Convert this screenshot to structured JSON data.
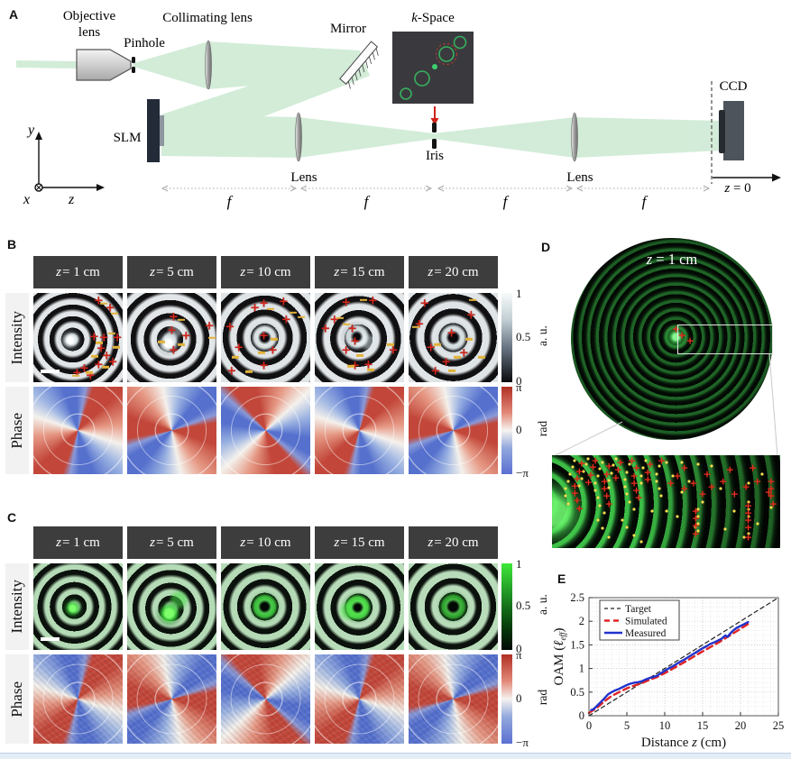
{
  "panels": {
    "A": {
      "label": "A",
      "objective_line1": "Objective",
      "objective_line2": "lens",
      "pinhole": "Pinhole",
      "collimating": "Collimating lens",
      "mirror": "Mirror",
      "kspace_k": "k",
      "kspace_rest": "-Space",
      "slm": "SLM",
      "lens1": "Lens",
      "lens2": "Lens",
      "iris": "Iris",
      "ccd": "CCD",
      "z0_var": "z",
      "z0_rest": " = 0",
      "f": "f",
      "axis_x": "x",
      "axis_y": "y",
      "axis_z": "z"
    },
    "B": {
      "label": "B",
      "headers": [
        "z = 1 cm",
        "z = 5 cm",
        "z = 10 cm",
        "z = 15 cm",
        "z = 20 cm"
      ],
      "row_labels": [
        "Intensity",
        "Phase"
      ],
      "colorbar_intensity": {
        "ticks": [
          "1",
          "0.5",
          "0"
        ],
        "unit": "a. u."
      },
      "colorbar_phase": {
        "ticks": [
          "π",
          "0",
          "−π"
        ],
        "unit": "rad"
      },
      "marks": [
        {
          "p": [
            [
              73,
              9
            ],
            [
              86,
              17
            ],
            [
              68,
              49
            ],
            [
              79,
              51
            ],
            [
              94,
              51
            ],
            [
              76,
              63
            ],
            [
              82,
              71
            ],
            [
              89,
              78
            ],
            [
              73,
              81
            ],
            [
              57,
              85
            ],
            [
              49,
              90
            ],
            [
              64,
              93
            ]
          ],
          "m": [
            [
              79,
              12
            ],
            [
              91,
              23
            ],
            [
              74,
              56
            ],
            [
              93,
              61
            ],
            [
              69,
              71
            ],
            [
              81,
              83
            ],
            [
              63,
              89
            ],
            [
              47,
              93
            ],
            [
              88,
              45
            ]
          ]
        },
        {
          "p": [
            [
              52,
              27
            ],
            [
              50,
              42
            ],
            [
              66,
              48
            ],
            [
              52,
              65
            ],
            [
              92,
              37
            ]
          ],
          "m": [
            [
              61,
              30
            ],
            [
              38,
              55
            ],
            [
              61,
              58
            ],
            [
              95,
              50
            ]
          ]
        },
        {
          "p": [
            [
              48,
              12
            ],
            [
              70,
              10
            ],
            [
              38,
              17
            ],
            [
              73,
              30
            ],
            [
              10,
              38
            ],
            [
              48,
              48
            ],
            [
              20,
              62
            ],
            [
              58,
              65
            ],
            [
              48,
              82
            ],
            [
              12,
              88
            ]
          ],
          "m": [
            [
              56,
              18
            ],
            [
              81,
              22
            ],
            [
              90,
              27
            ],
            [
              60,
              52
            ],
            [
              45,
              67
            ],
            [
              16,
              72
            ],
            [
              31,
              88
            ]
          ]
        },
        {
          "p": [
            [
              35,
              11
            ],
            [
              65,
              9
            ],
            [
              22,
              30
            ],
            [
              12,
              40
            ],
            [
              42,
              40
            ],
            [
              45,
              55
            ],
            [
              35,
              65
            ],
            [
              88,
              65
            ],
            [
              45,
              82
            ],
            [
              60,
              81
            ]
          ],
          "m": [
            [
              55,
              8
            ],
            [
              28,
              28
            ],
            [
              35,
              35
            ],
            [
              85,
              58
            ],
            [
              50,
              70
            ],
            [
              40,
              82
            ],
            [
              63,
              86
            ]
          ]
        },
        {
          "p": [
            [
              18,
              12
            ],
            [
              70,
              25
            ],
            [
              12,
              35
            ],
            [
              48,
              45
            ],
            [
              25,
              62
            ],
            [
              62,
              68
            ],
            [
              42,
              78
            ],
            [
              30,
              88
            ]
          ],
          "m": [
            [
              72,
              8
            ],
            [
              8,
              38
            ],
            [
              68,
              52
            ],
            [
              32,
              58
            ],
            [
              55,
              72
            ],
            [
              82,
              72
            ],
            [
              48,
              87
            ]
          ]
        }
      ]
    },
    "C": {
      "label": "C",
      "headers": [
        "z = 1 cm",
        "z = 5 cm",
        "z = 10 cm",
        "z = 15 cm",
        "z = 20 cm"
      ],
      "row_labels": [
        "Intensity",
        "Phase"
      ],
      "colorbar_intensity": {
        "ticks": [
          "1",
          "0.5",
          "0"
        ],
        "unit": "a. u."
      },
      "colorbar_phase": {
        "ticks": [
          "π",
          "0",
          "−π"
        ],
        "unit": "rad"
      }
    },
    "D": {
      "label": "D",
      "caption_var": "z",
      "caption_rest": " = 1 cm",
      "circle_marks": [
        [
          55,
          48
        ],
        [
          59,
          51
        ],
        [
          52,
          45
        ]
      ],
      "strip_plus": [
        [
          13,
          9
        ],
        [
          12,
          17
        ],
        [
          11,
          25
        ],
        [
          10,
          33
        ],
        [
          10,
          41
        ],
        [
          11,
          49
        ],
        [
          12,
          57
        ],
        [
          19,
          6
        ],
        [
          18,
          13
        ],
        [
          17,
          21
        ],
        [
          16,
          29
        ],
        [
          25,
          12
        ],
        [
          24,
          20
        ],
        [
          23,
          28
        ],
        [
          23,
          36
        ],
        [
          24,
          44
        ],
        [
          25,
          52
        ],
        [
          30,
          8
        ],
        [
          29,
          16
        ],
        [
          28,
          24
        ],
        [
          37,
          14
        ],
        [
          36,
          22
        ],
        [
          36,
          30
        ],
        [
          37,
          38
        ],
        [
          38,
          46
        ],
        [
          43,
          10
        ],
        [
          42,
          18
        ],
        [
          42,
          26
        ],
        [
          52,
          30
        ],
        [
          55,
          22
        ],
        [
          58,
          36
        ],
        [
          62,
          30
        ],
        [
          66,
          42
        ],
        [
          70,
          34
        ],
        [
          75,
          28
        ],
        [
          80,
          42
        ],
        [
          85,
          34
        ],
        [
          90,
          28
        ],
        [
          95,
          40
        ],
        [
          63,
          60
        ],
        [
          63,
          68
        ],
        [
          63,
          76
        ],
        [
          63,
          84
        ],
        [
          86,
          54
        ],
        [
          86,
          62
        ],
        [
          86,
          70
        ],
        [
          86,
          78
        ],
        [
          86,
          88
        ],
        [
          96,
          28
        ],
        [
          96,
          36
        ],
        [
          96,
          44
        ],
        [
          97,
          52
        ],
        [
          48,
          6
        ],
        [
          35,
          6
        ],
        [
          58,
          14
        ],
        [
          68,
          20
        ],
        [
          78,
          16
        ],
        [
          88,
          14
        ]
      ],
      "strip_dots": [
        [
          10,
          6
        ],
        [
          9,
          13
        ],
        [
          8,
          20
        ],
        [
          7,
          28
        ],
        [
          6,
          36
        ],
        [
          6,
          44
        ],
        [
          7,
          52
        ],
        [
          16,
          4
        ],
        [
          15,
          10
        ],
        [
          14,
          17
        ],
        [
          13,
          25
        ],
        [
          12,
          33
        ],
        [
          22,
          8
        ],
        [
          21,
          15
        ],
        [
          20,
          22
        ],
        [
          19,
          30
        ],
        [
          19,
          38
        ],
        [
          20,
          46
        ],
        [
          21,
          54
        ],
        [
          23,
          62
        ],
        [
          28,
          4
        ],
        [
          27,
          11
        ],
        [
          26,
          19
        ],
        [
          25,
          27
        ],
        [
          25,
          35
        ],
        [
          34,
          10
        ],
        [
          33,
          18
        ],
        [
          32,
          26
        ],
        [
          32,
          34
        ],
        [
          33,
          42
        ],
        [
          34,
          50
        ],
        [
          36,
          58
        ],
        [
          41,
          6
        ],
        [
          40,
          14
        ],
        [
          39,
          22
        ],
        [
          39,
          30
        ],
        [
          47,
          12
        ],
        [
          46,
          20
        ],
        [
          46,
          28
        ],
        [
          47,
          36
        ],
        [
          48,
          44
        ],
        [
          31,
          70
        ],
        [
          33,
          78
        ],
        [
          36,
          86
        ],
        [
          39,
          93
        ],
        [
          20,
          70
        ],
        [
          22,
          79
        ],
        [
          25,
          88
        ],
        [
          57,
          40
        ],
        [
          60,
          28
        ],
        [
          66,
          50
        ],
        [
          74,
          36
        ],
        [
          80,
          60
        ],
        [
          86,
          30
        ],
        [
          90,
          74
        ],
        [
          76,
          80
        ],
        [
          63,
          78
        ],
        [
          55,
          66
        ],
        [
          84,
          88
        ],
        [
          92,
          20
        ],
        [
          50,
          60
        ],
        [
          44,
          60
        ],
        [
          53,
          22
        ],
        [
          50,
          8
        ],
        [
          57,
          8
        ],
        [
          64,
          10
        ],
        [
          70,
          12
        ],
        [
          64,
          58
        ],
        [
          64,
          66
        ],
        [
          64,
          74
        ],
        [
          64,
          82
        ],
        [
          86,
          50
        ],
        [
          86,
          58
        ],
        [
          86,
          66
        ],
        [
          86,
          84
        ],
        [
          96,
          56
        ]
      ]
    },
    "E": {
      "label": "E"
    }
  },
  "chart_data": {
    "type": "line",
    "title": "",
    "xlabel_parts": [
      "Distance ",
      "z",
      " (cm)"
    ],
    "ylabel_parts": [
      "OAM (",
      "ℓ",
      "eff",
      ")"
    ],
    "xlim": [
      0,
      25
    ],
    "ylim": [
      0,
      2.5
    ],
    "xticks": [
      0,
      5,
      10,
      15,
      20,
      25
    ],
    "yticks": [
      0,
      0.5,
      1,
      1.5,
      2,
      2.5
    ],
    "grid": "minor-dotted",
    "legend_position": "top-left",
    "series": [
      {
        "name": "Target",
        "style": "dashed",
        "color": "#222222",
        "width": 1.2,
        "x": [
          0,
          25
        ],
        "y": [
          0,
          2.5
        ]
      },
      {
        "name": "Simulated",
        "style": "dashed",
        "color": "#e02424",
        "width": 2.4,
        "x": [
          0,
          1,
          2,
          3,
          4,
          5,
          6,
          7,
          8,
          9,
          10,
          11,
          12,
          13,
          14,
          15,
          16,
          17,
          18,
          19,
          20,
          21
        ],
        "y": [
          0.06,
          0.16,
          0.3,
          0.42,
          0.5,
          0.58,
          0.64,
          0.69,
          0.76,
          0.82,
          0.9,
          0.99,
          1.08,
          1.17,
          1.27,
          1.36,
          1.45,
          1.54,
          1.64,
          1.74,
          1.84,
          1.94
        ]
      },
      {
        "name": "Measured",
        "style": "solid",
        "color": "#2033cc",
        "width": 2.4,
        "x": [
          0.3,
          0.6,
          1,
          1.5,
          2,
          2.5,
          3,
          3.5,
          4,
          4.5,
          5,
          5.5,
          6,
          6.5,
          7,
          7.5,
          8,
          8.5,
          9,
          9.5,
          10,
          10.5,
          11,
          11.5,
          12,
          12.5,
          13,
          13.5,
          14,
          14.5,
          15,
          15.5,
          16,
          16.5,
          17,
          17.5,
          18,
          18.3,
          18.6,
          19,
          19.5,
          20,
          20.5,
          21
        ],
        "y": [
          0.12,
          0.14,
          0.2,
          0.28,
          0.36,
          0.45,
          0.5,
          0.54,
          0.57,
          0.61,
          0.65,
          0.68,
          0.7,
          0.71,
          0.73,
          0.77,
          0.8,
          0.82,
          0.85,
          0.9,
          0.95,
          1.0,
          1.04,
          1.09,
          1.14,
          1.18,
          1.23,
          1.28,
          1.33,
          1.38,
          1.43,
          1.47,
          1.52,
          1.55,
          1.59,
          1.63,
          1.7,
          1.67,
          1.73,
          1.8,
          1.86,
          1.9,
          1.94,
          1.98
        ]
      }
    ]
  }
}
